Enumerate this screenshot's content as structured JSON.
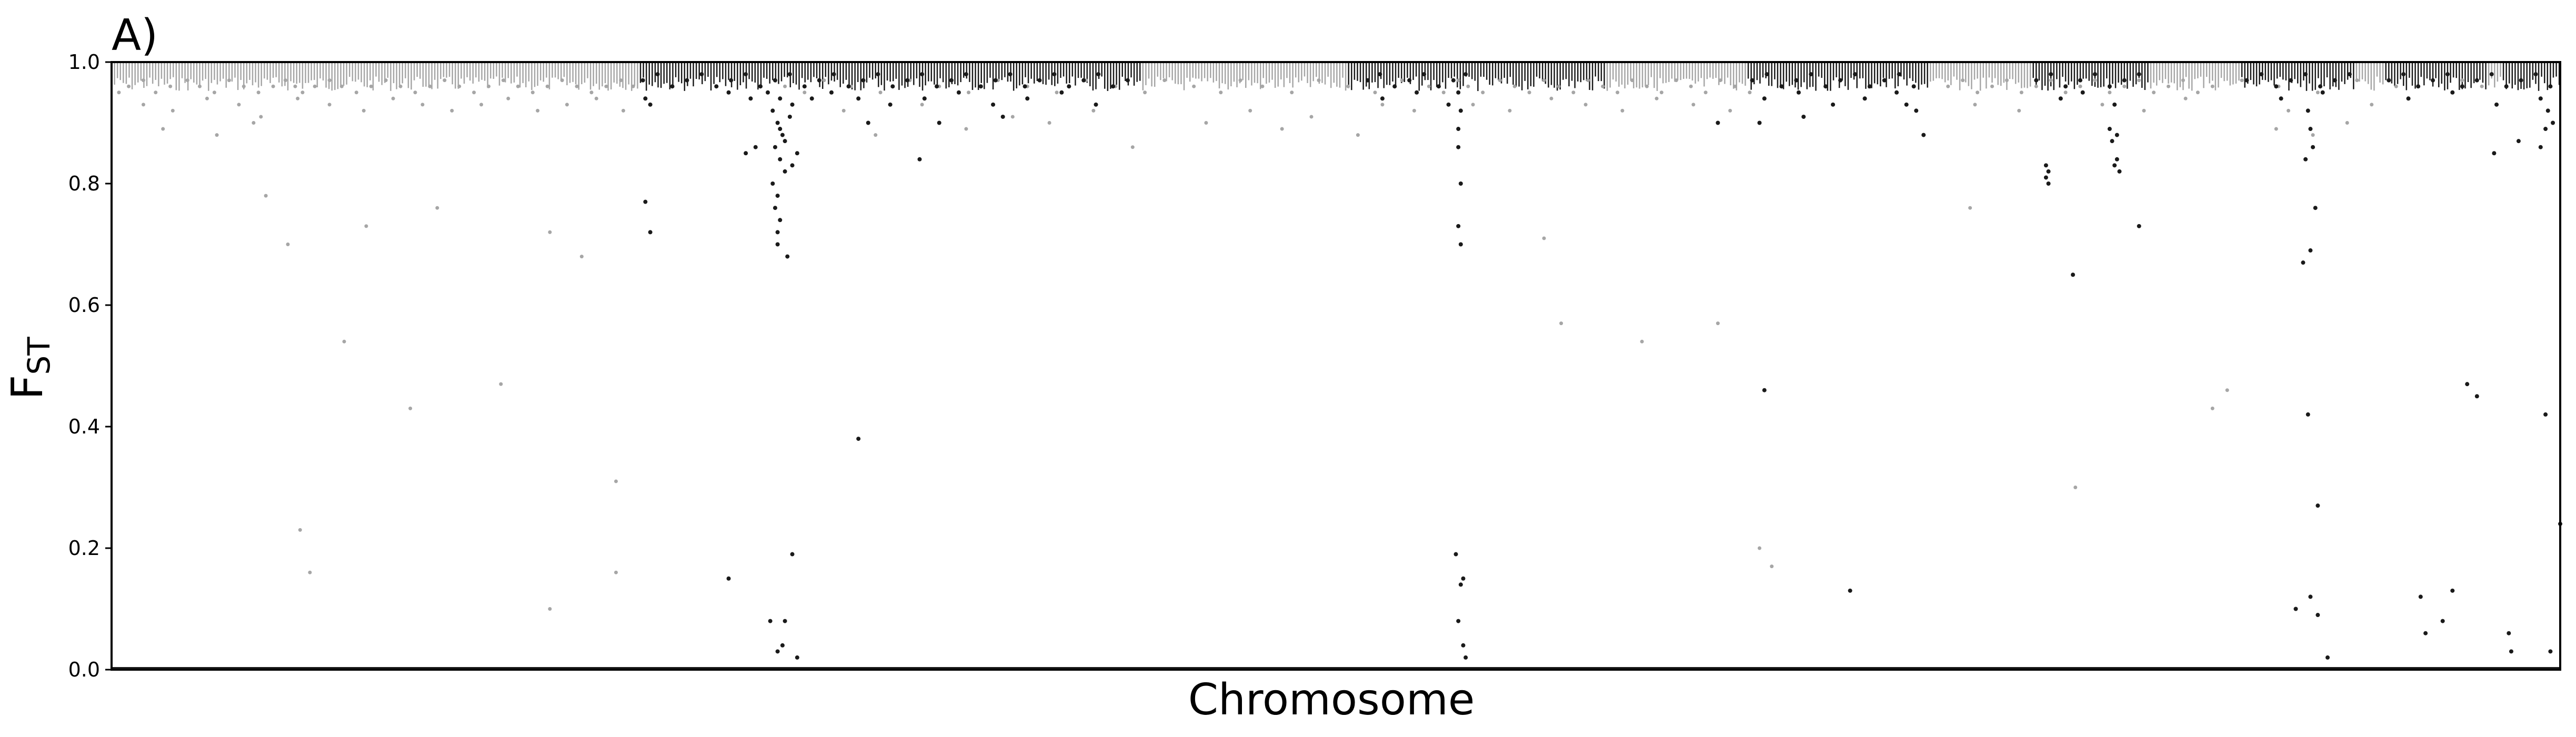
{
  "chart_data": {
    "type": "scatter",
    "panel_label": "A)",
    "title": "",
    "xlabel": "Chromosome",
    "ylabel": "F",
    "ylabel_subscript": "ST",
    "ylim": [
      0.0,
      1.0
    ],
    "yticks": [
      0.0,
      0.2,
      0.4,
      0.6,
      0.8,
      1.0
    ],
    "ytick_labels": [
      "0.0",
      "0.2",
      "0.4",
      "0.6",
      "0.8",
      "1.0"
    ],
    "xlim": [
      0,
      100
    ],
    "show_xticks": false,
    "grid": false,
    "legend": "none",
    "colors": {
      "light": "#a6a6a6",
      "dark": "#1a1a1a",
      "axis": "#000000"
    },
    "series": [
      {
        "color": "light",
        "x": [
          0.3,
          0.7,
          1.3,
          1.8,
          2.4,
          3.1,
          3.6,
          4.2,
          4.8,
          5.4,
          6.0,
          6.6,
          7.1,
          7.5,
          7.8,
          8.3,
          8.9,
          9.4,
          10.0,
          10.6,
          11.2,
          11.8,
          12.4,
          13.0,
          13.6,
          14.2,
          14.8,
          15.4,
          16.0,
          16.6,
          17.2,
          17.8,
          18.4,
          19.0,
          19.6,
          20.2,
          20.8,
          21.3,
          1.3,
          2.5,
          3.9,
          5.2,
          6.1,
          7.6,
          8.9,
          10.3,
          11.5,
          12.7,
          13.9,
          15.1,
          16.2,
          17.4,
          18.6,
          19.8,
          20.9,
          2.1,
          4.3,
          5.8,
          6.3,
          7.2,
          9.5,
          10.4,
          12.2,
          13.3,
          15.9,
          17.9,
          19.2,
          20.6,
          7.7,
          8.1,
          17.9,
          20.6,
          55.0,
          55.4,
          56.0,
          56.7,
          57.3,
          57.9,
          58.5,
          59.1,
          59.7,
          60.3,
          60.9,
          61.5,
          62.1,
          62.7,
          63.3,
          63.9,
          64.5,
          65.1,
          65.7,
          66.3,
          66.9,
          55.6,
          57.1,
          58.8,
          60.2,
          61.7,
          63.1,
          64.6,
          66.1,
          58.5,
          59.2,
          62.5,
          65.6,
          67.3,
          67.8,
          75.0,
          75.6,
          76.2,
          76.8,
          77.4,
          78.0,
          78.6,
          79.2,
          79.8,
          80.4,
          81.0,
          81.6,
          82.2,
          82.8,
          83.4,
          84.0,
          84.6,
          85.2,
          85.8,
          76.1,
          77.9,
          79.6,
          81.3,
          83.0,
          84.7,
          75.9,
          80.2,
          85.8,
          86.4,
          43.0,
          44.2,
          45.3,
          46.1,
          47.0,
          48.2,
          49.3,
          50.5,
          51.6,
          52.7,
          53.8,
          54.4,
          46.5,
          49.0,
          51.9,
          53.2,
          44.7,
          47.8,
          50.9,
          27.5,
          28.3,
          29.1,
          30.2,
          31.4,
          32.6,
          33.8,
          35.0,
          36.2,
          37.4,
          38.6,
          39.8,
          41.0,
          42.2,
          29.9,
          33.1,
          36.8,
          40.1,
          31.2,
          34.9,
          38.3,
          41.7,
          87.0,
          88.5,
          90.1,
          91.7,
          93.3,
          88.9,
          92.3,
          96.0,
          96.8,
          88.4,
          89.9,
          91.3
        ],
        "y": [
          0.95,
          0.96,
          0.97,
          0.95,
          0.96,
          0.97,
          0.96,
          0.95,
          0.97,
          0.96,
          0.95,
          0.96,
          0.97,
          0.96,
          0.95,
          0.96,
          0.97,
          0.96,
          0.95,
          0.96,
          0.97,
          0.96,
          0.95,
          0.96,
          0.97,
          0.96,
          0.95,
          0.96,
          0.97,
          0.96,
          0.95,
          0.96,
          0.97,
          0.96,
          0.95,
          0.96,
          0.97,
          0.96,
          0.93,
          0.92,
          0.94,
          0.93,
          0.91,
          0.94,
          0.93,
          0.92,
          0.94,
          0.93,
          0.92,
          0.93,
          0.94,
          0.92,
          0.93,
          0.94,
          0.92,
          0.89,
          0.88,
          0.9,
          0.78,
          0.7,
          0.54,
          0.73,
          0.43,
          0.76,
          0.47,
          0.72,
          0.68,
          0.31,
          0.23,
          0.16,
          0.1,
          0.16,
          0.97,
          0.96,
          0.95,
          0.97,
          0.96,
          0.95,
          0.97,
          0.96,
          0.95,
          0.97,
          0.96,
          0.95,
          0.97,
          0.96,
          0.95,
          0.97,
          0.96,
          0.95,
          0.97,
          0.96,
          0.95,
          0.93,
          0.92,
          0.94,
          0.93,
          0.92,
          0.94,
          0.93,
          0.92,
          0.71,
          0.57,
          0.54,
          0.57,
          0.2,
          0.17,
          0.96,
          0.97,
          0.95,
          0.96,
          0.97,
          0.95,
          0.96,
          0.97,
          0.95,
          0.96,
          0.97,
          0.95,
          0.96,
          0.97,
          0.95,
          0.96,
          0.97,
          0.95,
          0.96,
          0.93,
          0.92,
          0.94,
          0.93,
          0.92,
          0.94,
          0.76,
          0.3,
          0.43,
          0.46,
          0.97,
          0.96,
          0.95,
          0.97,
          0.96,
          0.95,
          0.97,
          0.96,
          0.95,
          0.97,
          0.96,
          0.95,
          0.92,
          0.91,
          0.93,
          0.92,
          0.9,
          0.89,
          0.88,
          0.96,
          0.95,
          0.97,
          0.96,
          0.95,
          0.97,
          0.96,
          0.95,
          0.97,
          0.96,
          0.95,
          0.97,
          0.96,
          0.95,
          0.92,
          0.93,
          0.91,
          0.92,
          0.88,
          0.89,
          0.9,
          0.86,
          0.97,
          0.96,
          0.95,
          0.97,
          0.96,
          0.92,
          0.93,
          0.97,
          0.96,
          0.89,
          0.88,
          0.9
        ]
      },
      {
        "color": "dark",
        "x": [
          21.7,
          22.3,
          22.9,
          23.5,
          24.1,
          24.7,
          25.3,
          25.9,
          26.5,
          27.1,
          27.7,
          28.3,
          28.9,
          29.5,
          30.1,
          30.7,
          31.3,
          31.9,
          32.5,
          33.1,
          33.7,
          34.3,
          34.9,
          35.5,
          36.1,
          36.7,
          37.3,
          37.9,
          38.5,
          39.1,
          39.7,
          40.3,
          40.9,
          41.5,
          25.2,
          26.1,
          26.8,
          27.3,
          27.8,
          28.6,
          29.4,
          30.5,
          31.8,
          33.2,
          34.6,
          36.0,
          37.4,
          38.8,
          40.2,
          27.0,
          27.2,
          27.4,
          27.1,
          27.3,
          27.5,
          27.0,
          27.2,
          27.1,
          27.3,
          27.2,
          27.2,
          27.6,
          27.8,
          28.0,
          27.5,
          27.3,
          27.7,
          21.8,
          22.0,
          26.3,
          25.9,
          30.9,
          33.0,
          33.8,
          36.4,
          51.3,
          51.8,
          52.4,
          53.0,
          53.6,
          54.2,
          54.8,
          55.3,
          51.9,
          53.3,
          54.6,
          55.0,
          55.1,
          55.0,
          55.0,
          55.1,
          55.0,
          55.1,
          55.2,
          55.3,
          67.0,
          67.6,
          68.2,
          68.8,
          69.4,
          70.0,
          70.6,
          71.2,
          71.8,
          72.4,
          73.0,
          73.6,
          67.5,
          68.9,
          70.3,
          71.6,
          72.9,
          73.3,
          73.7,
          74.0,
          67.3,
          69.1,
          78.6,
          79.2,
          79.8,
          80.4,
          81.0,
          81.6,
          82.2,
          82.8,
          79.6,
          80.5,
          81.8,
          79.0,
          79.1,
          79.0,
          79.1,
          81.8,
          81.9,
          82.0,
          81.6,
          81.7,
          81.9,
          87.2,
          87.8,
          88.4,
          89.0,
          89.6,
          90.2,
          90.8,
          91.4,
          88.6,
          90.3,
          89.7,
          89.8,
          89.9,
          89.6,
          90.0,
          89.8,
          90.1,
          93.0,
          93.6,
          94.2,
          94.8,
          95.4,
          96.0,
          96.6,
          97.2,
          97.8,
          98.4,
          99.0,
          99.6,
          93.8,
          95.6,
          97.4,
          99.2,
          99.5,
          99.7,
          99.4,
          97.3,
          98.3,
          99.2,
          100.0,
          26.9,
          27.2,
          27.5,
          27.4,
          28.0,
          27.8,
          21.8,
          22.0,
          25.2,
          30.5,
          65.6,
          67.5,
          71.0,
          80.1,
          82.8,
          89.2,
          89.5,
          90.1,
          89.7,
          90.5,
          89.8,
          94.3,
          94.5,
          95.6,
          95.2,
          96.6,
          96.2,
          97.9,
          98.0,
          99.4,
          99.6,
          54.9,
          55.1,
          55.0,
          55.2
        ],
        "y": [
          0.97,
          0.98,
          0.96,
          0.97,
          0.98,
          0.96,
          0.97,
          0.98,
          0.96,
          0.97,
          0.98,
          0.96,
          0.97,
          0.98,
          0.96,
          0.97,
          0.98,
          0.96,
          0.97,
          0.98,
          0.96,
          0.97,
          0.98,
          0.96,
          0.97,
          0.98,
          0.96,
          0.97,
          0.98,
          0.96,
          0.97,
          0.98,
          0.96,
          0.97,
          0.95,
          0.94,
          0.95,
          0.94,
          0.93,
          0.94,
          0.95,
          0.94,
          0.93,
          0.94,
          0.95,
          0.93,
          0.94,
          0.95,
          0.93,
          0.92,
          0.9,
          0.88,
          0.86,
          0.84,
          0.82,
          0.8,
          0.78,
          0.76,
          0.74,
          0.72,
          0.7,
          0.68,
          0.83,
          0.85,
          0.87,
          0.89,
          0.91,
          0.94,
          0.93,
          0.86,
          0.85,
          0.9,
          0.84,
          0.9,
          0.91,
          0.97,
          0.98,
          0.96,
          0.97,
          0.98,
          0.96,
          0.97,
          0.98,
          0.94,
          0.95,
          0.93,
          0.95,
          0.92,
          0.89,
          0.86,
          0.8,
          0.73,
          0.7,
          0.15,
          0.02,
          0.97,
          0.98,
          0.96,
          0.97,
          0.98,
          0.96,
          0.97,
          0.98,
          0.96,
          0.97,
          0.98,
          0.96,
          0.94,
          0.95,
          0.93,
          0.94,
          0.95,
          0.93,
          0.92,
          0.88,
          0.9,
          0.91,
          0.97,
          0.98,
          0.96,
          0.97,
          0.98,
          0.96,
          0.97,
          0.98,
          0.94,
          0.95,
          0.93,
          0.83,
          0.82,
          0.81,
          0.8,
          0.83,
          0.84,
          0.82,
          0.89,
          0.87,
          0.88,
          0.97,
          0.98,
          0.96,
          0.97,
          0.98,
          0.96,
          0.97,
          0.98,
          0.94,
          0.95,
          0.92,
          0.89,
          0.86,
          0.84,
          0.76,
          0.69,
          0.27,
          0.97,
          0.98,
          0.96,
          0.97,
          0.98,
          0.96,
          0.97,
          0.98,
          0.96,
          0.97,
          0.98,
          0.96,
          0.94,
          0.95,
          0.93,
          0.94,
          0.92,
          0.9,
          0.89,
          0.85,
          0.87,
          0.86,
          0.24,
          0.08,
          0.03,
          0.08,
          0.04,
          0.02,
          0.19,
          0.77,
          0.72,
          0.15,
          0.38,
          0.9,
          0.46,
          0.13,
          0.65,
          0.73,
          0.1,
          0.67,
          0.09,
          0.42,
          0.02,
          0.12,
          0.12,
          0.06,
          0.13,
          0.08,
          0.45,
          0.47,
          0.06,
          0.03,
          0.42,
          0.03,
          0.19,
          0.14,
          0.08,
          0.04
        ]
      }
    ],
    "baseline_band": {
      "y": 0.0,
      "color": "dark"
    },
    "top_band": {
      "y_min": 0.96,
      "y_max": 1.0
    }
  }
}
